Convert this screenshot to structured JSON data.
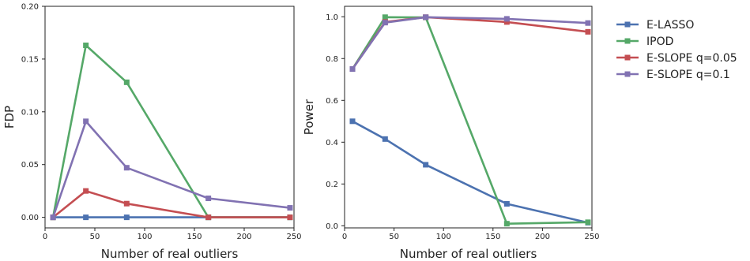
{
  "chart_data": [
    {
      "type": "line",
      "xlabel": "Number of real outliers",
      "ylabel": "FDP",
      "xlim": [
        0,
        250
      ],
      "ylim": [
        -0.01,
        0.2
      ],
      "xticks": [
        0,
        50,
        100,
        150,
        200,
        250
      ],
      "yticks": [
        0.0,
        0.05,
        0.1,
        0.15,
        0.2
      ],
      "ytick_labels": [
        "0.00",
        "0.05",
        "0.10",
        "0.15",
        "0.20"
      ],
      "x": [
        8,
        41,
        82,
        164,
        246
      ],
      "series": [
        {
          "name": "E-LASSO",
          "color": "#4C72B0",
          "values": [
            0.0,
            0.0,
            0.0,
            0.0,
            0.0
          ]
        },
        {
          "name": "IPOD",
          "color": "#55A868",
          "values": [
            0.0,
            0.163,
            0.128,
            0.0,
            0.0
          ]
        },
        {
          "name": "E-SLOPE q=0.05",
          "color": "#C44E52",
          "values": [
            0.0,
            0.025,
            0.013,
            0.0,
            0.0
          ]
        },
        {
          "name": "E-SLOPE q=0.1",
          "color": "#8172B2",
          "values": [
            0.0,
            0.091,
            0.047,
            0.018,
            0.009
          ]
        }
      ],
      "grid": false,
      "marker": "square"
    },
    {
      "type": "line",
      "xlabel": "Number of real outliers",
      "ylabel": "Power",
      "xlim": [
        0,
        250
      ],
      "ylim": [
        -0.01,
        1.05
      ],
      "xticks": [
        0,
        50,
        100,
        150,
        200,
        250
      ],
      "yticks": [
        0.0,
        0.2,
        0.4,
        0.6,
        0.8,
        1.0
      ],
      "ytick_labels": [
        "0.0",
        "0.2",
        "0.4",
        "0.6",
        "0.8",
        "1.0"
      ],
      "x": [
        8,
        41,
        82,
        164,
        246
      ],
      "series": [
        {
          "name": "E-LASSO",
          "color": "#4C72B0",
          "values": [
            0.5,
            0.415,
            0.292,
            0.105,
            0.015
          ]
        },
        {
          "name": "IPOD",
          "color": "#55A868",
          "values": [
            0.75,
            0.998,
            0.997,
            0.01,
            0.017
          ]
        },
        {
          "name": "E-SLOPE q=0.05",
          "color": "#C44E52",
          "values": [
            0.75,
            0.975,
            0.998,
            0.975,
            0.928
          ]
        },
        {
          "name": "E-SLOPE q=0.1",
          "color": "#8172B2",
          "values": [
            0.75,
            0.972,
            0.998,
            0.99,
            0.97
          ]
        }
      ],
      "grid": false,
      "marker": "square"
    }
  ],
  "legend": {
    "placement": "right",
    "entries": [
      {
        "label": "E-LASSO",
        "color": "#4C72B0"
      },
      {
        "label": "IPOD",
        "color": "#55A868"
      },
      {
        "label": "E-SLOPE q=0.05",
        "color": "#C44E52"
      },
      {
        "label": "E-SLOPE q=0.1",
        "color": "#8172B2"
      }
    ]
  }
}
